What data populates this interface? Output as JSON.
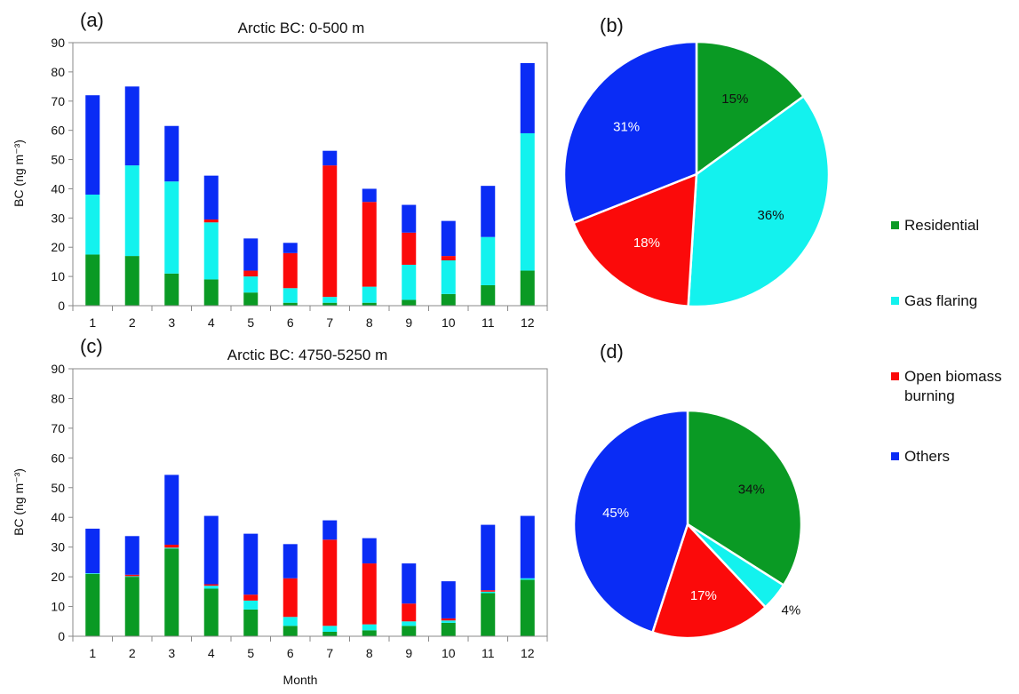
{
  "colors": {
    "Residential": "#0a9a24",
    "Gas flaring": "#13f2ee",
    "Open biomass burning": "#fb0a0a",
    "Others": "#0a2cf5"
  },
  "legend": {
    "items": [
      {
        "name": "Residential",
        "lines": [
          "Residential"
        ]
      },
      {
        "name": "Gas flaring",
        "lines": [
          "Gas flaring"
        ]
      },
      {
        "name": "Open biomass burning",
        "lines": [
          "Open biomass",
          "burning"
        ]
      },
      {
        "name": "Others",
        "lines": [
          "Others"
        ]
      }
    ]
  },
  "chart_data": [
    {
      "id": "a",
      "type": "bar",
      "stacked": true,
      "panel_label": "(a)",
      "title": "Arctic BC: 0-500 m",
      "ylabel": "BC (ng m⁻³)",
      "xlabel": "",
      "ylim": [
        0,
        90
      ],
      "yticks": [
        0,
        10,
        20,
        30,
        40,
        50,
        60,
        70,
        80,
        90
      ],
      "categories": [
        "1",
        "2",
        "3",
        "4",
        "5",
        "6",
        "7",
        "8",
        "9",
        "10",
        "11",
        "12"
      ],
      "series": [
        {
          "name": "Residential",
          "values": [
            17.5,
            17,
            11,
            9,
            4.5,
            1,
            1,
            1,
            2,
            4,
            7,
            12
          ]
        },
        {
          "name": "Gas flaring",
          "values": [
            20.5,
            31,
            31.5,
            19.5,
            5.5,
            5,
            2,
            5.5,
            12,
            11.5,
            16.5,
            47
          ]
        },
        {
          "name": "Open biomass burning",
          "values": [
            0,
            0,
            0,
            1,
            2,
            12,
            45,
            29,
            11,
            1.5,
            0,
            0
          ]
        },
        {
          "name": "Others",
          "values": [
            34,
            27,
            19,
            15,
            11,
            3.5,
            5,
            4.5,
            9.5,
            12,
            17.5,
            24
          ]
        }
      ]
    },
    {
      "id": "b",
      "type": "pie",
      "panel_label": "(b)",
      "slices": [
        {
          "name": "Residential",
          "value": 15,
          "label": "15%"
        },
        {
          "name": "Gas flaring",
          "value": 36,
          "label": "36%"
        },
        {
          "name": "Open biomass burning",
          "value": 18,
          "label": "18%"
        },
        {
          "name": "Others",
          "value": 31,
          "label": "31%"
        }
      ]
    },
    {
      "id": "c",
      "type": "bar",
      "stacked": true,
      "panel_label": "(c)",
      "title": "Arctic BC: 4750-5250 m",
      "ylabel": "BC (ng m⁻³)",
      "xlabel": "Month",
      "ylim": [
        0,
        90
      ],
      "yticks": [
        0,
        10,
        20,
        30,
        40,
        50,
        60,
        70,
        80,
        90
      ],
      "categories": [
        "1",
        "2",
        "3",
        "4",
        "5",
        "6",
        "7",
        "8",
        "9",
        "10",
        "11",
        "12"
      ],
      "series": [
        {
          "name": "Residential",
          "values": [
            21,
            20,
            29.5,
            16,
            9,
            3.5,
            1.5,
            2,
            3.5,
            4.5,
            14.5,
            19
          ]
        },
        {
          "name": "Gas flaring",
          "values": [
            0.2,
            0.2,
            0.3,
            1,
            3,
            3,
            2,
            2,
            1.5,
            0.8,
            0.5,
            0.5
          ]
        },
        {
          "name": "Open biomass burning",
          "values": [
            0,
            0.5,
            1,
            0.5,
            2,
            13,
            29,
            20.5,
            6,
            0.7,
            0.5,
            0
          ]
        },
        {
          "name": "Others",
          "values": [
            15,
            13,
            23.5,
            23,
            20.5,
            11.5,
            6.5,
            8.5,
            13.5,
            12.5,
            22,
            21
          ]
        }
      ]
    },
    {
      "id": "d",
      "type": "pie",
      "panel_label": "(d)",
      "slices": [
        {
          "name": "Residential",
          "value": 34,
          "label": "34%"
        },
        {
          "name": "Gas flaring",
          "value": 4,
          "label": "4%"
        },
        {
          "name": "Open biomass burning",
          "value": 17,
          "label": "17%"
        },
        {
          "name": "Others",
          "value": 45,
          "label": "45%"
        }
      ]
    }
  ]
}
